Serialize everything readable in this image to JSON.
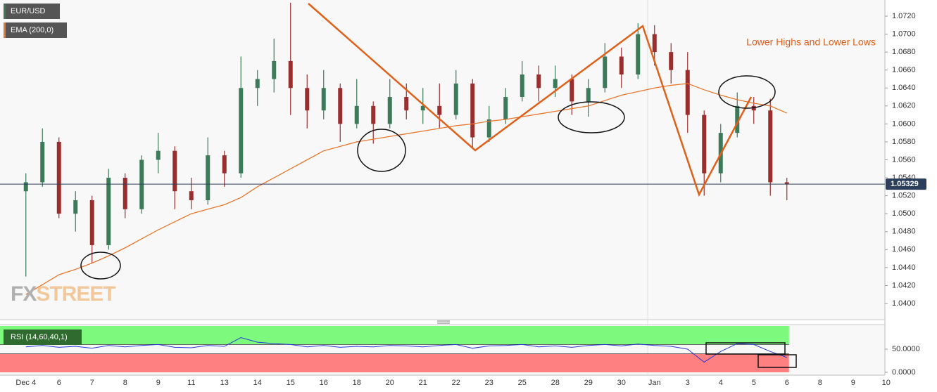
{
  "chart_data": [
    {
      "type": "candlestick",
      "name": "EUR/USD",
      "categories": [
        "Dec 4",
        null,
        "6",
        null,
        "7",
        null,
        "8",
        null,
        "9",
        null,
        "11",
        null,
        "13",
        null,
        "14",
        null,
        "15",
        null,
        "16",
        null,
        "18",
        null,
        "20",
        null,
        "21",
        null,
        "22",
        null,
        "23",
        null,
        "25",
        null,
        "28",
        null,
        "29",
        null,
        "30",
        null,
        "Jan",
        null,
        "3",
        null,
        "4",
        null,
        "5",
        null,
        "6",
        null,
        "8",
        null,
        "9",
        null,
        "10"
      ],
      "open": [
        1.0525,
        1.0535,
        1.058,
        1.05,
        1.0515,
        1.0465,
        1.054,
        1.0505,
        1.056,
        1.057,
        1.0525,
        1.0515,
        1.0565,
        1.0545,
        1.064,
        1.065,
        1.067,
        1.064,
        1.0615,
        1.064,
        1.06,
        1.062,
        1.06,
        1.063,
        1.0615,
        1.062,
        1.061,
        1.0645,
        1.0585,
        1.0605,
        1.063,
        1.0655,
        1.064,
        1.065,
        1.0625,
        1.064,
        1.0675,
        1.0655,
        1.07,
        1.068,
        1.066,
        1.061,
        1.0545,
        1.059,
        1.062,
        1.0615,
        1.0535,
        null,
        null,
        null,
        null,
        null,
        null
      ],
      "high": [
        1.0545,
        1.0595,
        1.0585,
        1.0525,
        1.052,
        1.055,
        1.0545,
        1.0565,
        1.059,
        1.0575,
        1.054,
        1.0585,
        1.057,
        1.0675,
        1.066,
        1.0695,
        1.0735,
        1.0655,
        1.066,
        1.0645,
        1.065,
        1.0625,
        1.065,
        1.0645,
        1.064,
        1.0645,
        1.066,
        1.065,
        1.062,
        1.064,
        1.067,
        1.0665,
        1.0665,
        1.0655,
        1.065,
        1.069,
        1.0685,
        1.0712,
        1.071,
        1.069,
        1.068,
        1.0615,
        1.06,
        1.0635,
        1.063,
        1.0628,
        1.054,
        null,
        null,
        null,
        null,
        null,
        null
      ],
      "low": [
        1.043,
        1.053,
        1.0495,
        1.048,
        1.0445,
        1.046,
        1.0495,
        1.05,
        1.0545,
        1.0505,
        1.0505,
        1.051,
        1.053,
        1.054,
        1.062,
        1.0635,
        1.061,
        1.0595,
        1.0605,
        1.058,
        1.0595,
        1.0578,
        1.0595,
        1.0605,
        1.06,
        1.0595,
        1.0605,
        1.0573,
        1.058,
        1.06,
        1.0625,
        1.0625,
        1.063,
        1.061,
        1.0608,
        1.0635,
        1.064,
        1.065,
        1.0665,
        1.0645,
        1.059,
        1.052,
        1.0535,
        1.0585,
        1.06,
        1.052,
        1.0515,
        null,
        null,
        null,
        null,
        null,
        null
      ],
      "close": [
        1.0535,
        1.058,
        1.05,
        1.0515,
        1.0465,
        1.054,
        1.0505,
        1.056,
        1.057,
        1.0525,
        1.0515,
        1.0565,
        1.0545,
        1.064,
        1.065,
        1.067,
        1.064,
        1.0615,
        1.064,
        1.06,
        1.062,
        1.06,
        1.063,
        1.0615,
        1.062,
        1.061,
        1.0645,
        1.0585,
        1.0605,
        1.063,
        1.0655,
        1.064,
        1.065,
        1.0625,
        1.064,
        1.0675,
        1.0655,
        1.07,
        1.068,
        1.066,
        1.061,
        1.0545,
        1.059,
        1.062,
        1.0615,
        1.0535,
        1.0533,
        null,
        null,
        null,
        null,
        null,
        null
      ],
      "up_color": "#3d7a5a",
      "down_color": "#9a2e2e",
      "overlays": [
        {
          "name": "EMA (200,0)",
          "color": "#e8772e",
          "values": [
            1.041,
            1.0421,
            1.0432,
            1.0438,
            1.0445,
            1.0453,
            1.0462,
            1.0472,
            1.0482,
            1.0491,
            1.05,
            1.0505,
            1.051,
            1.0518,
            1.053,
            1.054,
            1.055,
            1.056,
            1.057,
            1.0575,
            1.058,
            1.0583,
            1.0586,
            1.0589,
            1.0592,
            1.0595,
            1.0598,
            1.06,
            1.0603,
            1.0605,
            1.0608,
            1.0611,
            1.0614,
            1.0617,
            1.062,
            1.0626,
            1.0632,
            1.0636,
            1.064,
            1.0643,
            1.0645,
            1.0638,
            1.0632,
            1.0627,
            1.0623,
            1.062,
            1.0612,
            null,
            null,
            null,
            null,
            null,
            null
          ]
        }
      ],
      "last_price": 1.05329,
      "ylim": [
        1.0382,
        1.0738
      ],
      "yticks": [
        {
          "value": 1.04,
          "label": "1.0400"
        },
        {
          "value": 1.042,
          "label": "1.0420"
        },
        {
          "value": 1.044,
          "label": "1.0440"
        },
        {
          "value": 1.046,
          "label": "1.0460"
        },
        {
          "value": 1.048,
          "label": "1.0480"
        },
        {
          "value": 1.05,
          "label": "1.0500"
        },
        {
          "value": 1.052,
          "label": "1.0520"
        },
        {
          "value": 1.054,
          "label": "1.0540"
        },
        {
          "value": 1.056,
          "label": "1.0560"
        },
        {
          "value": 1.058,
          "label": "1.0580"
        },
        {
          "value": 1.06,
          "label": "1.0600"
        },
        {
          "value": 1.062,
          "label": "1.0620"
        },
        {
          "value": 1.064,
          "label": "1.0640"
        },
        {
          "value": 1.066,
          "label": "1.0660"
        },
        {
          "value": 1.068,
          "label": "1.0680"
        },
        {
          "value": 1.07,
          "label": "1.0700"
        },
        {
          "value": 1.072,
          "label": "1.0720"
        }
      ],
      "grid": false,
      "annotation": "Lower Highs and  Lower Lows",
      "watermark": [
        "FX",
        "STREET"
      ]
    },
    {
      "type": "line",
      "series": [
        {
          "name": "RSI (14,60,40,1)",
          "color": "#2636d8",
          "values": [
            55,
            58,
            54,
            56,
            52,
            58,
            55,
            58,
            60,
            54,
            53,
            58,
            56,
            75,
            65,
            62,
            60,
            55,
            58,
            54,
            56,
            55,
            58,
            57,
            55,
            58,
            60,
            52,
            57,
            58,
            60,
            55,
            57,
            54,
            58,
            60,
            57,
            61,
            58,
            56,
            50,
            22,
            45,
            62,
            60,
            45,
            32,
            null,
            null,
            null,
            null,
            null,
            null
          ]
        }
      ],
      "upper": 60,
      "lower": 40,
      "upper_color": "#7dfa7d",
      "lower_color": "#ff8080",
      "ylim": [
        0,
        100
      ],
      "yticks": [
        {
          "value": 50,
          "label": "50.0000"
        },
        {
          "value": 0,
          "label": "0.0000"
        }
      ]
    }
  ]
}
